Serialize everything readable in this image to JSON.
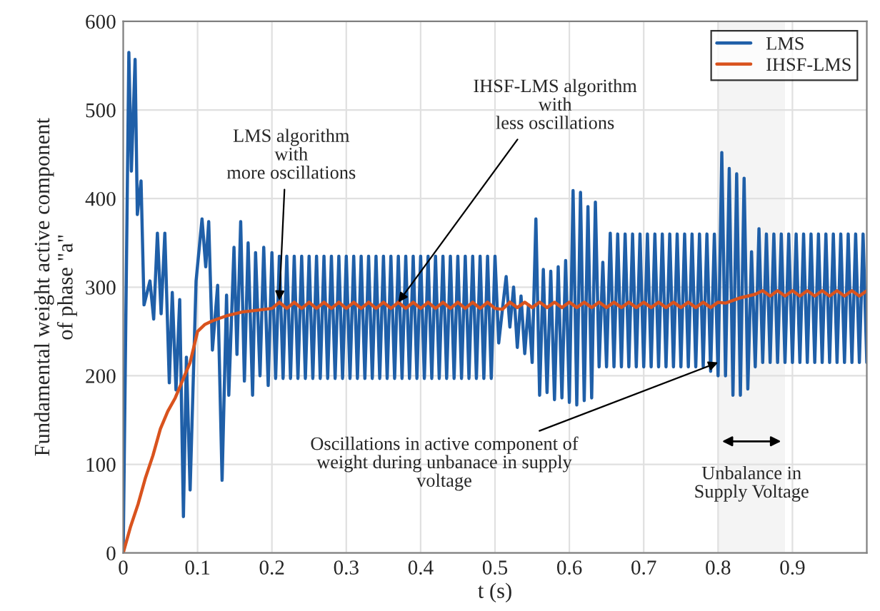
{
  "chart_data": {
    "type": "line",
    "xlabel": "t (s)",
    "ylabel": "Fundamental weight active component\nof phase \"a\"",
    "xlim": [
      0,
      1.0
    ],
    "ylim": [
      0,
      600
    ],
    "xticks": [
      0,
      0.1,
      0.2,
      0.3,
      0.4,
      0.5,
      0.6,
      0.7,
      0.8,
      0.9
    ],
    "yticks": [
      0,
      100,
      200,
      300,
      400,
      500,
      600
    ],
    "grid": true,
    "legend": "top right",
    "series": [
      {
        "name": "LMS",
        "color": "#1f5fa8",
        "x": [
          0,
          0.0076,
          0.011,
          0.016,
          0.019,
          0.024,
          0.028,
          0.036,
          0.041,
          0.046,
          0.051,
          0.056,
          0.062,
          0.066,
          0.071,
          0.076,
          0.081,
          0.085,
          0.09,
          0.098,
          0.106,
          0.111,
          0.115,
          0.12,
          0.127,
          0.133,
          0.139,
          0.142,
          0.149,
          0.153,
          0.158,
          0.163,
          0.168,
          0.174,
          0.178,
          0.184,
          0.189,
          0.195,
          0.2,
          0.205,
          0.21,
          0.215,
          0.22,
          0.225,
          0.23,
          0.235,
          0.24,
          0.245,
          0.25,
          0.255,
          0.26,
          0.265,
          0.27,
          0.275,
          0.28,
          0.285,
          0.29,
          0.295,
          0.3,
          0.305,
          0.31,
          0.315,
          0.32,
          0.325,
          0.33,
          0.335,
          0.34,
          0.345,
          0.35,
          0.355,
          0.36,
          0.365,
          0.37,
          0.375,
          0.38,
          0.385,
          0.39,
          0.395,
          0.4,
          0.405,
          0.41,
          0.415,
          0.42,
          0.425,
          0.43,
          0.435,
          0.44,
          0.445,
          0.45,
          0.455,
          0.46,
          0.465,
          0.47,
          0.475,
          0.48,
          0.485,
          0.49,
          0.495,
          0.5,
          0.505,
          0.51,
          0.515,
          0.52,
          0.525,
          0.53,
          0.535,
          0.54,
          0.545,
          0.55,
          0.555,
          0.56,
          0.565,
          0.57,
          0.575,
          0.58,
          0.585,
          0.59,
          0.595,
          0.6,
          0.605,
          0.61,
          0.615,
          0.62,
          0.625,
          0.63,
          0.635,
          0.64,
          0.645,
          0.65,
          0.655,
          0.66,
          0.665,
          0.67,
          0.675,
          0.68,
          0.685,
          0.69,
          0.695,
          0.7,
          0.705,
          0.71,
          0.715,
          0.72,
          0.725,
          0.73,
          0.735,
          0.74,
          0.745,
          0.75,
          0.755,
          0.76,
          0.765,
          0.77,
          0.775,
          0.78,
          0.785,
          0.79,
          0.795,
          0.8,
          0.805,
          0.81,
          0.815,
          0.82,
          0.825,
          0.83,
          0.835,
          0.84,
          0.845,
          0.85,
          0.855,
          0.86,
          0.865,
          0.87,
          0.875,
          0.88,
          0.885,
          0.89,
          0.895,
          0.9,
          0.905,
          0.91,
          0.915,
          0.92,
          0.925,
          0.93,
          0.935,
          0.94,
          0.945,
          0.95,
          0.955,
          0.96,
          0.965,
          0.97,
          0.975,
          0.98,
          0.985,
          0.99,
          0.995,
          1.0
        ],
        "values": [
          0,
          565,
          431,
          557,
          382,
          420,
          280,
          307,
          264,
          361,
          270,
          361,
          192,
          294,
          184,
          286,
          41,
          221,
          71,
          307,
          377,
          323,
          374,
          229,
          302,
          82,
          291,
          178,
          345,
          224,
          374,
          194,
          350,
          178,
          339,
          200,
          345,
          189,
          339,
          197,
          335,
          197,
          335,
          197,
          335,
          197,
          335,
          197,
          335,
          197,
          335,
          197,
          335,
          197,
          335,
          197,
          335,
          197,
          335,
          197,
          335,
          197,
          335,
          197,
          335,
          197,
          335,
          197,
          335,
          197,
          335,
          197,
          335,
          197,
          335,
          197,
          335,
          197,
          335,
          197,
          335,
          197,
          335,
          197,
          335,
          197,
          335,
          197,
          335,
          197,
          335,
          197,
          335,
          197,
          335,
          197,
          335,
          197,
          335,
          237,
          275,
          312,
          255,
          300,
          232,
          290,
          225,
          280,
          215,
          377,
          178,
          320,
          181,
          318,
          173,
          323,
          175,
          330,
          170,
          409,
          167,
          407,
          172,
          391,
          175,
          396,
          210,
          328,
          210,
          361,
          210,
          360,
          210,
          360,
          210,
          360,
          210,
          360,
          210,
          360,
          210,
          360,
          210,
          360,
          210,
          360,
          210,
          360,
          210,
          360,
          210,
          360,
          210,
          360,
          210,
          360,
          205,
          360,
          200,
          452,
          200,
          434,
          178,
          428,
          178,
          423,
          185,
          340,
          210,
          366,
          215,
          360,
          215,
          360,
          215,
          360,
          215,
          360,
          215,
          360,
          215,
          360,
          215,
          360,
          215,
          360,
          215,
          360,
          215,
          360,
          215,
          360,
          215,
          360,
          215,
          360,
          215,
          360,
          215
        ]
      },
      {
        "name": "IHSF-LMS",
        "color": "#d9531e",
        "x": [
          0,
          0.01,
          0.02,
          0.03,
          0.04,
          0.05,
          0.06,
          0.07,
          0.08,
          0.09,
          0.1,
          0.11,
          0.12,
          0.13,
          0.14,
          0.15,
          0.16,
          0.17,
          0.18,
          0.19,
          0.2,
          0.21,
          0.22,
          0.23,
          0.24,
          0.25,
          0.26,
          0.27,
          0.28,
          0.29,
          0.3,
          0.31,
          0.32,
          0.33,
          0.34,
          0.35,
          0.36,
          0.37,
          0.38,
          0.39,
          0.4,
          0.41,
          0.42,
          0.43,
          0.44,
          0.45,
          0.46,
          0.47,
          0.48,
          0.49,
          0.5,
          0.51,
          0.52,
          0.53,
          0.54,
          0.55,
          0.56,
          0.57,
          0.58,
          0.59,
          0.6,
          0.61,
          0.62,
          0.63,
          0.64,
          0.65,
          0.66,
          0.67,
          0.68,
          0.69,
          0.7,
          0.71,
          0.72,
          0.73,
          0.74,
          0.75,
          0.76,
          0.77,
          0.78,
          0.79,
          0.8,
          0.81,
          0.82,
          0.83,
          0.84,
          0.85,
          0.86,
          0.87,
          0.88,
          0.89,
          0.9,
          0.91,
          0.92,
          0.93,
          0.94,
          0.95,
          0.96,
          0.97,
          0.98,
          0.99,
          1.0
        ],
        "values": [
          0,
          30,
          55,
          85,
          110,
          140,
          160,
          175,
          195,
          215,
          250,
          258,
          262,
          265,
          268,
          270,
          272,
          273,
          274,
          275,
          276,
          283,
          276,
          283,
          276,
          283,
          276,
          283,
          276,
          283,
          276,
          283,
          276,
          283,
          276,
          283,
          276,
          283,
          276,
          283,
          276,
          283,
          276,
          283,
          276,
          283,
          276,
          283,
          276,
          283,
          276,
          275,
          283,
          277,
          283,
          277,
          283,
          277,
          283,
          277,
          283,
          277,
          283,
          277,
          283,
          277,
          283,
          277,
          283,
          277,
          283,
          277,
          283,
          277,
          283,
          277,
          283,
          277,
          283,
          277,
          283,
          282,
          285,
          288,
          290,
          292,
          296,
          290,
          296,
          290,
          296,
          290,
          296,
          290,
          296,
          290,
          296,
          290,
          296,
          290,
          296
        ]
      }
    ],
    "annotations": [
      {
        "text": "LMS algorithm\nwith\nmore oscillations",
        "x": 0.21,
        "y": 285
      },
      {
        "text": "IHSF-LMS algorithm\nwith\nless oscillations",
        "x": 0.37,
        "y": 283
      },
      {
        "text": "Oscillations in active component of\nweight during unbanace in supply\nvoltage",
        "x": 0.8,
        "y": 215
      }
    ],
    "bands": [
      {
        "axis": "x",
        "from": 0.8,
        "to": 0.89,
        "label": "Unbalance in\nSupply Voltage",
        "color": "#f4f4f4"
      }
    ]
  }
}
